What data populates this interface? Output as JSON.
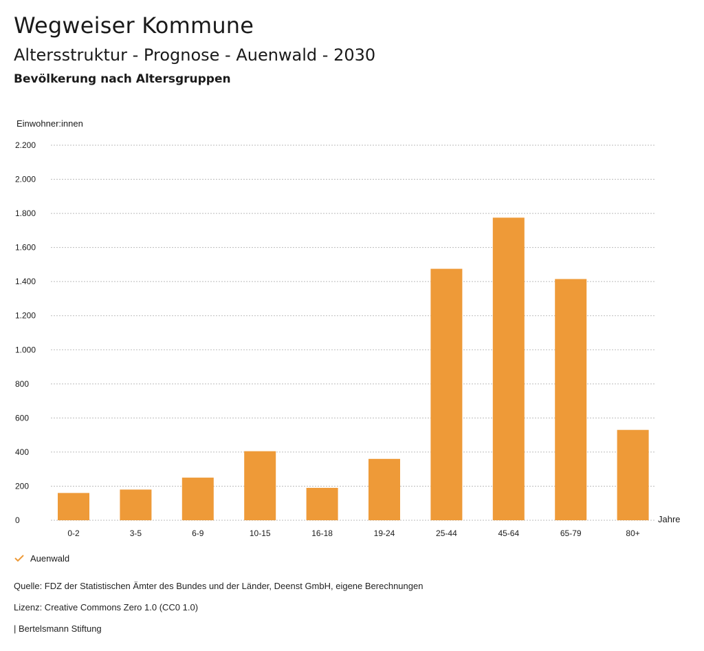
{
  "header": {
    "title": "Wegweiser Kommune",
    "subtitle": "Altersstruktur - Prognose - Auenwald - 2030",
    "section": "Bevölkerung nach Altersgruppen"
  },
  "legend": {
    "series_label": "Auenwald",
    "icon": "check-icon"
  },
  "footer": {
    "source": "Quelle: FDZ der Statistischen Ämter des Bundes und der Länder, Deenst GmbH, eigene Berechnungen",
    "license": "Lizenz: Creative Commons Zero 1.0 (CC0 1.0)",
    "publisher": "| Bertelsmann Stiftung"
  },
  "colors": {
    "bar": "#ee9a38",
    "grid": "#bbbbbb",
    "text": "#1a1a1a"
  },
  "chart_data": {
    "type": "bar",
    "ylabel": "Einwohner:innen",
    "xlabel": "Jahre",
    "categories": [
      "0-2",
      "3-5",
      "6-9",
      "10-15",
      "16-18",
      "19-24",
      "25-44",
      "45-64",
      "65-79",
      "80+"
    ],
    "series": [
      {
        "name": "Auenwald",
        "values": [
          160,
          180,
          250,
          405,
          190,
          360,
          1475,
          1775,
          1415,
          530
        ]
      }
    ],
    "ylim": [
      0,
      2200
    ],
    "yticks": [
      0,
      200,
      400,
      600,
      800,
      1000,
      1200,
      1400,
      1600,
      1800,
      2000,
      2200
    ],
    "ytick_labels": [
      "0",
      "200",
      "400",
      "600",
      "800",
      "1.000",
      "1.200",
      "1.400",
      "1.600",
      "1.800",
      "2.000",
      "2.200"
    ],
    "grid": true,
    "legend_position": "bottom-left"
  }
}
